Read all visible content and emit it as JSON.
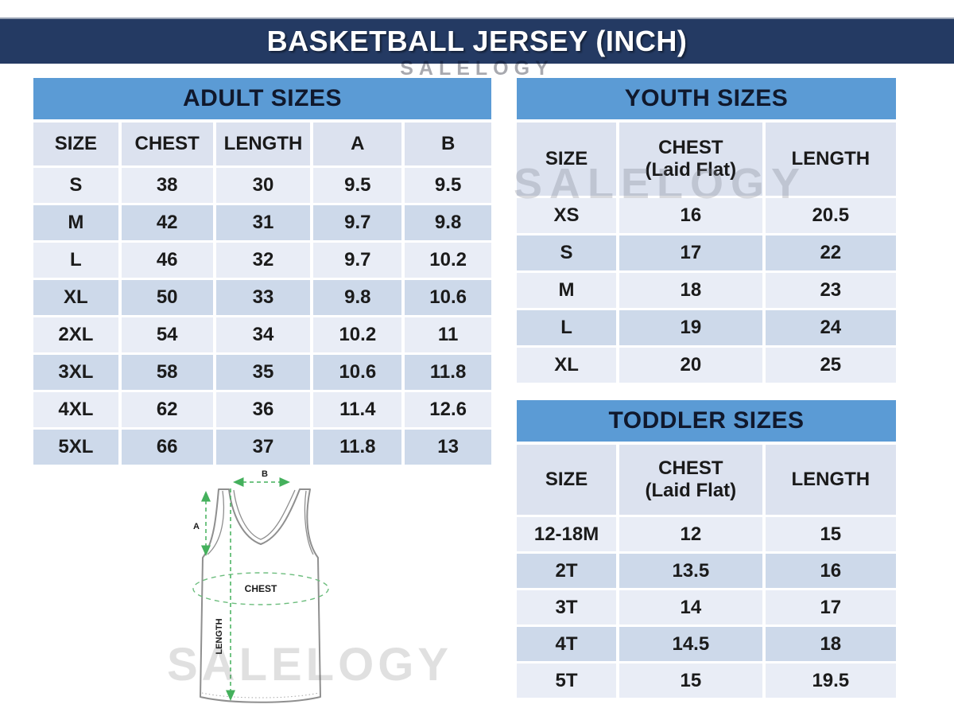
{
  "banner": {
    "title": "BASKETBALL JERSEY (INCH)"
  },
  "watermark": {
    "text": "SALELOGY"
  },
  "colors": {
    "banner_bg": "#243a63",
    "table_title_bg": "#5b9bd5",
    "header_row_bg": "#dce2ef",
    "row_light": "#e9edf6",
    "row_shaded": "#cdd9ea",
    "measure_green": "#44b05c"
  },
  "chart_data": [
    {
      "type": "table",
      "title": "ADULT SIZES",
      "columns": [
        "SIZE",
        "CHEST",
        "LENGTH",
        "A",
        "B"
      ],
      "rows": [
        [
          "S",
          "38",
          "30",
          "9.5",
          "9.5"
        ],
        [
          "M",
          "42",
          "31",
          "9.7",
          "9.8"
        ],
        [
          "L",
          "46",
          "32",
          "9.7",
          "10.2"
        ],
        [
          "XL",
          "50",
          "33",
          "9.8",
          "10.6"
        ],
        [
          "2XL",
          "54",
          "34",
          "10.2",
          "11"
        ],
        [
          "3XL",
          "58",
          "35",
          "10.6",
          "11.8"
        ],
        [
          "4XL",
          "62",
          "36",
          "11.4",
          "12.6"
        ],
        [
          "5XL",
          "66",
          "37",
          "11.8",
          "13"
        ]
      ]
    },
    {
      "type": "table",
      "title": "YOUTH SIZES",
      "columns": [
        "SIZE",
        "CHEST\n(Laid Flat)",
        "LENGTH"
      ],
      "rows": [
        [
          "XS",
          "16",
          "20.5"
        ],
        [
          "S",
          "17",
          "22"
        ],
        [
          "M",
          "18",
          "23"
        ],
        [
          "L",
          "19",
          "24"
        ],
        [
          "XL",
          "20",
          "25"
        ]
      ]
    },
    {
      "type": "table",
      "title": "TODDLER SIZES",
      "columns": [
        "SIZE",
        "CHEST\n(Laid Flat)",
        "LENGTH"
      ],
      "rows": [
        [
          "12-18M",
          "12",
          "15"
        ],
        [
          "2T",
          "13.5",
          "16"
        ],
        [
          "3T",
          "14",
          "17"
        ],
        [
          "4T",
          "14.5",
          "18"
        ],
        [
          "5T",
          "15",
          "19.5"
        ]
      ]
    }
  ],
  "diagram": {
    "label_a": "A",
    "label_b": "B",
    "label_chest": "CHEST",
    "label_length": "LENGTH"
  }
}
